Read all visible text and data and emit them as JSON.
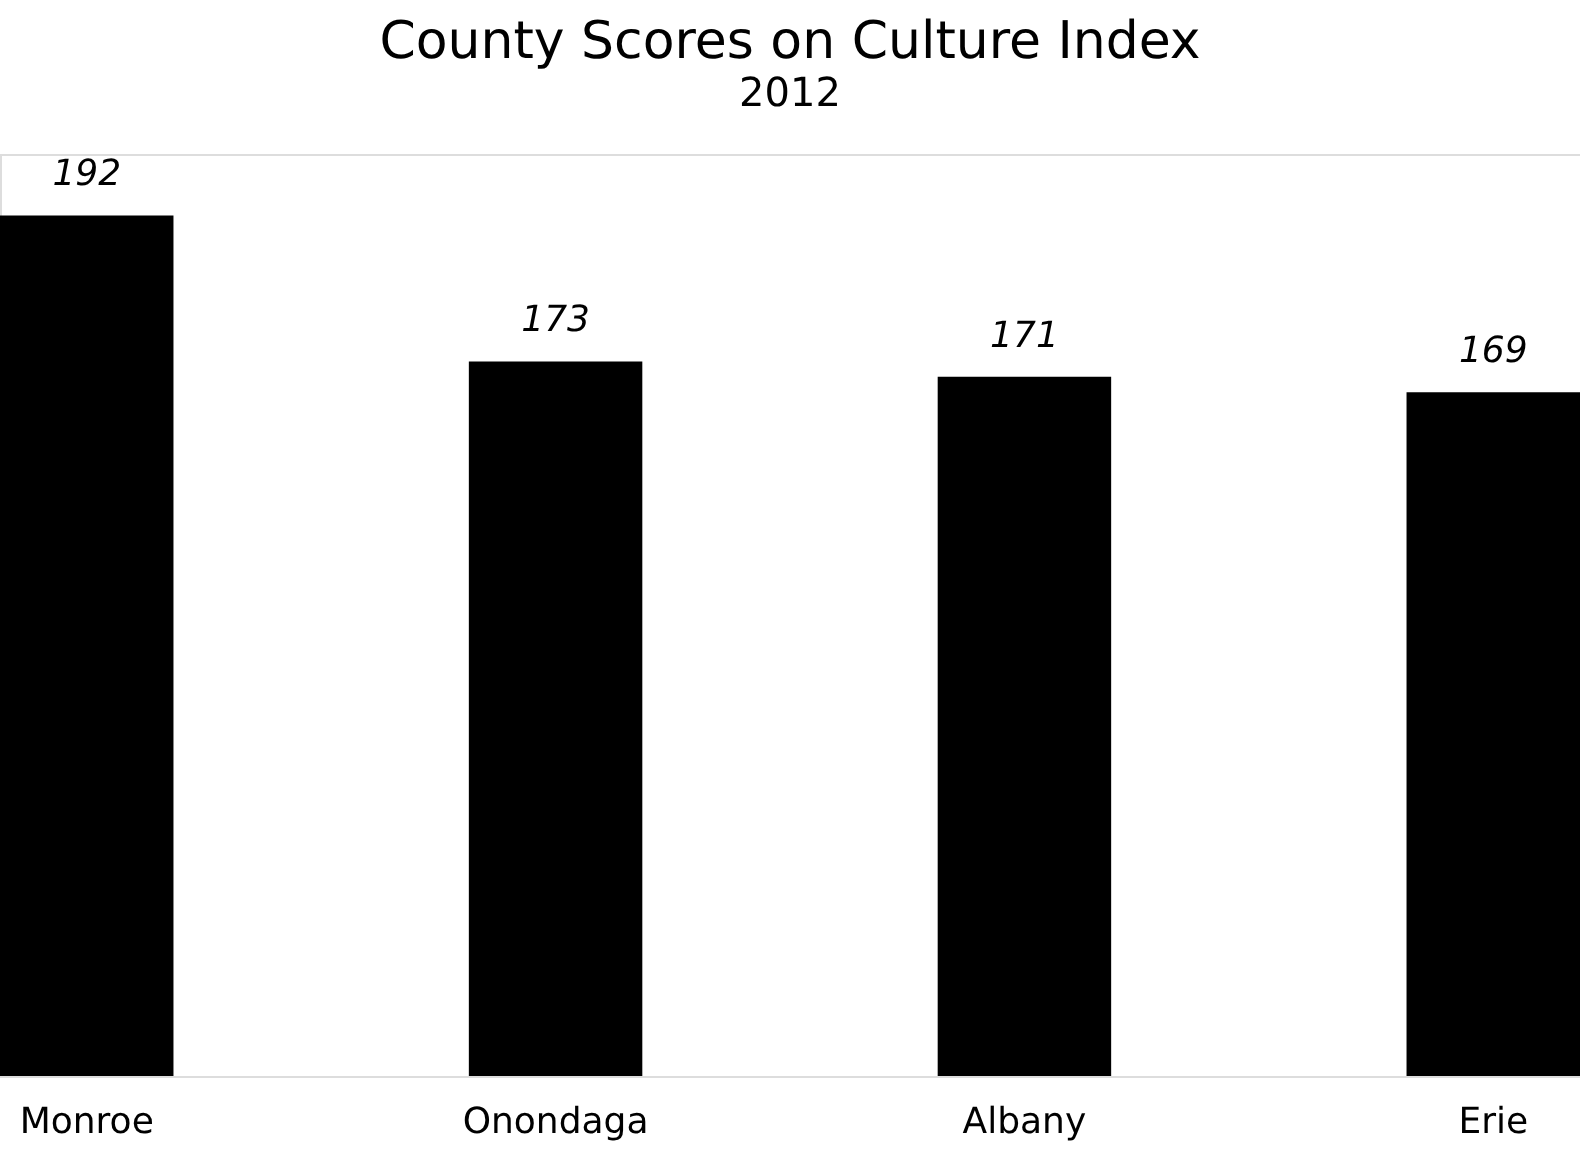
{
  "chart_data": {
    "type": "bar",
    "title": "County Scores on Culture Index",
    "subtitle": "2012",
    "categories": [
      "Monroe",
      "Onondaga",
      "Albany",
      "Erie"
    ],
    "values": [
      192,
      173,
      171,
      169
    ],
    "color": "#000000",
    "ylim": [
      80,
      200
    ],
    "data_labels": true,
    "tick_labels": "x",
    "grid": false
  }
}
